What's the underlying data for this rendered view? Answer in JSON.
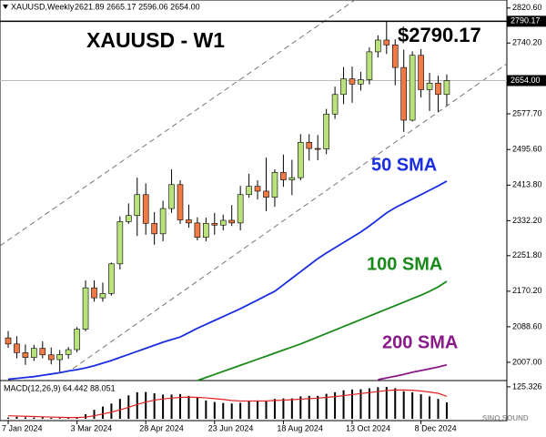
{
  "header": {
    "symbol": "XAUUSD,Weekly",
    "ohlc": "2621.89 2665.17 2596.06 2654.00"
  },
  "chart_data": [
    {
      "type": "candlestick",
      "title": "XAUUSD - W1",
      "annotation": "$2790.17",
      "categories": [
        "7 Jan 2024",
        null,
        null,
        null,
        null,
        null,
        null,
        null,
        "3 Mar 2024",
        null,
        null,
        null,
        null,
        null,
        null,
        null,
        "28 Apr 2024",
        null,
        null,
        null,
        null,
        null,
        null,
        null,
        "23 Jun 2024",
        null,
        null,
        null,
        null,
        null,
        null,
        null,
        "18 Aug 2024",
        null,
        null,
        null,
        null,
        null,
        null,
        null,
        "13 Oct 2024",
        null,
        null,
        null,
        null,
        null,
        null,
        null,
        "8 Dec 2024",
        null,
        null,
        null
      ],
      "open": [
        2063,
        2049,
        2029,
        2018,
        2039,
        2024,
        2013,
        2025,
        2036,
        2083,
        2178,
        2155,
        2165,
        2233,
        2330,
        2344,
        2392,
        2326,
        2302,
        2360,
        2415,
        2334,
        2327,
        2294,
        2326,
        2322,
        2333,
        2327,
        2392,
        2411,
        2400,
        2386,
        2443,
        2426,
        2431,
        2512,
        2498,
        2497,
        2577,
        2622,
        2658,
        2646,
        2656,
        2720,
        2747,
        2736,
        2684,
        2563,
        2712,
        2633,
        2648,
        2622
      ],
      "high": [
        2079,
        2067,
        2048,
        2047,
        2055,
        2041,
        2035,
        2042,
        2088,
        2195,
        2195,
        2190,
        2236,
        2342,
        2372,
        2431,
        2418,
        2352,
        2378,
        2450,
        2425,
        2369,
        2340,
        2339,
        2350,
        2346,
        2368,
        2412,
        2440,
        2425,
        2477,
        2450,
        2484,
        2472,
        2531,
        2531,
        2529,
        2589,
        2640,
        2685,
        2686,
        2674,
        2730,
        2758,
        2790.17,
        2749,
        2725,
        2721,
        2726,
        2672,
        2665,
        2668
      ],
      "low": [
        2040,
        2016,
        2001,
        2010,
        2016,
        2002,
        1985,
        2015,
        2030,
        2078,
        2146,
        2146,
        2160,
        2220,
        2325,
        2297,
        2300,
        2277,
        2285,
        2350,
        2325,
        2316,
        2287,
        2285,
        2300,
        2310,
        2320,
        2310,
        2385,
        2381,
        2354,
        2364,
        2410,
        2391,
        2425,
        2470,
        2471,
        2485,
        2566,
        2600,
        2603,
        2631,
        2645,
        2707,
        2715,
        2643,
        2536,
        2560,
        2615,
        2584,
        2582,
        2596
      ],
      "close": [
        2049,
        2029,
        2018,
        2039,
        2024,
        2013,
        2025,
        2036,
        2083,
        2178,
        2155,
        2165,
        2233,
        2330,
        2344,
        2392,
        2326,
        2302,
        2360,
        2415,
        2334,
        2327,
        2294,
        2326,
        2322,
        2333,
        2327,
        2392,
        2411,
        2400,
        2386,
        2443,
        2426,
        2431,
        2512,
        2498,
        2497,
        2577,
        2622,
        2658,
        2646,
        2656,
        2720,
        2747,
        2736,
        2684,
        2563,
        2712,
        2633,
        2648,
        2622,
        2654
      ],
      "up_color": "#b9e27c",
      "down_color": "#f07a45",
      "series": [
        {
          "name": "50 SMA",
          "color": "#1a2ee0",
          "values": [
            1968,
            1970,
            1972,
            1974,
            1977,
            1980,
            1983,
            1987,
            1990,
            1994,
            1999,
            2005,
            2011,
            2018,
            2025,
            2032,
            2039,
            2046,
            2053,
            2059,
            2065,
            2075,
            2085,
            2094,
            2103,
            2112,
            2121,
            2130,
            2140,
            2150,
            2160,
            2170,
            2185,
            2200,
            2215,
            2230,
            2245,
            2258,
            2270,
            2282,
            2294,
            2306,
            2320,
            2335,
            2350,
            2362,
            2372,
            2382,
            2392,
            2402,
            2412,
            2423
          ]
        },
        {
          "name": "100 SMA",
          "color": "#1a8a1a",
          "values": [
            null,
            null,
            null,
            null,
            null,
            null,
            null,
            null,
            null,
            null,
            null,
            null,
            null,
            null,
            null,
            null,
            null,
            null,
            null,
            null,
            null,
            null,
            1965,
            1972,
            1979,
            1986,
            1993,
            2000,
            2007,
            2014,
            2021,
            2028,
            2035,
            2042,
            2049,
            2057,
            2065,
            2073,
            2081,
            2089,
            2097,
            2105,
            2113,
            2121,
            2129,
            2137,
            2145,
            2153,
            2161,
            2170,
            2180,
            2193
          ]
        },
        {
          "name": "200 SMA",
          "color": "#8a1a8a",
          "values": [
            null,
            null,
            null,
            null,
            null,
            null,
            null,
            null,
            null,
            null,
            null,
            null,
            null,
            null,
            null,
            null,
            null,
            null,
            null,
            null,
            null,
            null,
            null,
            null,
            null,
            null,
            null,
            null,
            null,
            null,
            null,
            null,
            null,
            null,
            null,
            null,
            null,
            null,
            null,
            null,
            null,
            null,
            null,
            1967,
            1971,
            1975,
            1979,
            1984,
            1988,
            1992,
            1996,
            2001
          ]
        }
      ],
      "ylim": [
        1965,
        2839
      ],
      "yticks": [
        {
          "value": 2820.6,
          "label": "2820.60"
        },
        {
          "value": 2740.2,
          "label": "2740.20"
        },
        {
          "value": 2577.7,
          "label": "2577.70"
        },
        {
          "value": 2495.6,
          "label": "2495.60"
        },
        {
          "value": 2413.8,
          "label": "2413.80"
        },
        {
          "value": 2332.2,
          "label": "2332.20"
        },
        {
          "value": 2251.8,
          "label": "2251.80"
        },
        {
          "value": 2170.2,
          "label": "2170.20"
        },
        {
          "value": 2088.6,
          "label": "2088.60"
        },
        {
          "value": 2007,
          "label": "2007.00"
        }
      ],
      "price_labels": [
        {
          "value": 2790.17,
          "label": "2790.17"
        },
        {
          "value": 2654,
          "label": "2654.00"
        }
      ]
    },
    {
      "type": "macd",
      "title": "MACD(12,26,9) 64.442 88.051",
      "color": "#000000",
      "signal_color": "#e02020",
      "values": [
        5,
        8,
        6,
        5,
        6,
        4,
        3,
        3,
        6,
        18,
        35,
        48,
        60,
        78,
        92,
        104,
        105,
        100,
        95,
        95,
        97,
        90,
        82,
        72,
        66,
        62,
        60,
        63,
        68,
        72,
        72,
        78,
        80,
        80,
        88,
        90,
        90,
        98,
        104,
        112,
        115,
        116,
        120,
        124,
        125,
        120,
        108,
        104,
        96,
        88,
        78,
        64.442
      ],
      "signal": [
        12,
        11,
        10,
        9,
        8,
        7,
        6,
        5,
        5,
        7,
        12,
        19,
        26,
        35,
        45,
        56,
        66,
        73,
        78,
        81,
        84,
        85,
        84,
        82,
        79,
        76,
        72,
        70,
        70,
        70,
        70,
        72,
        73,
        75,
        77,
        79,
        81,
        84,
        87,
        91,
        95,
        99,
        103,
        107,
        111,
        113,
        113,
        112,
        109,
        105,
        100,
        88.051
      ],
      "ylim": [
        -7,
        150
      ],
      "yticks": [
        125.326
      ]
    }
  ],
  "watermark": "SINO SOUND"
}
